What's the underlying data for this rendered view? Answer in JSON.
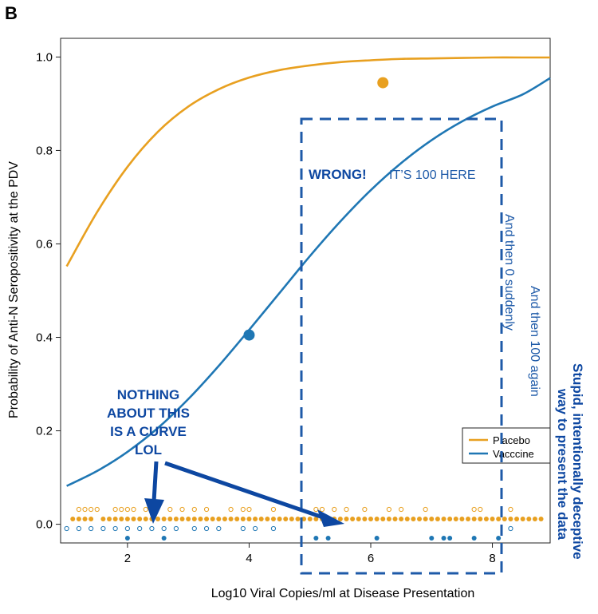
{
  "panel_letter": "B",
  "chart_data": {
    "type": "scatter",
    "xlabel": "Log10 Viral Copies/ml at Disease Presentation",
    "ylabel": "Probability of Anti-N Seropositivity at the PDV",
    "xlim": [
      0.9,
      8.95
    ],
    "ylim": [
      -0.04,
      1.04
    ],
    "x_ticks": [
      2,
      4,
      6,
      8
    ],
    "y_ticks": [
      0.0,
      0.2,
      0.4,
      0.6,
      0.8,
      1.0
    ],
    "y_tick_labels": [
      "0.0",
      "0.2",
      "0.4",
      "0.6",
      "0.8",
      "1.0"
    ],
    "grid": false,
    "legend_position": "right",
    "colors": {
      "placebo": "#e8a020",
      "vaccine": "#1f77b4",
      "annotation": "#0d47a1"
    },
    "series": [
      {
        "name": "Placebo",
        "kind": "fitted-curve",
        "x": [
          1.0,
          1.5,
          2.0,
          2.5,
          3.0,
          3.5,
          4.0,
          4.5,
          5.0,
          5.5,
          6.0,
          6.5,
          7.0,
          7.5,
          8.0,
          8.5,
          8.95
        ],
        "y": [
          0.552,
          0.668,
          0.765,
          0.84,
          0.894,
          0.931,
          0.956,
          0.972,
          0.982,
          0.989,
          0.993,
          0.996,
          0.997,
          0.998,
          0.999,
          0.999,
          0.999
        ]
      },
      {
        "name": "Vaccine",
        "kind": "fitted-curve",
        "x": [
          1.0,
          1.5,
          2.0,
          2.5,
          3.0,
          3.5,
          4.0,
          4.5,
          5.0,
          5.5,
          6.0,
          6.5,
          7.0,
          7.5,
          8.0,
          8.5,
          8.95
        ],
        "y": [
          0.082,
          0.114,
          0.155,
          0.206,
          0.268,
          0.339,
          0.416,
          0.495,
          0.574,
          0.648,
          0.715,
          0.773,
          0.822,
          0.862,
          0.894,
          0.92,
          0.955
        ]
      }
    ],
    "big_points": [
      {
        "series": "Placebo",
        "x": 6.2,
        "y": 0.945
      },
      {
        "series": "Vaccine",
        "x": 4.0,
        "y": 0.405
      }
    ],
    "rug": {
      "placebo_open": [
        1.2,
        1.3,
        1.4,
        1.5,
        1.8,
        1.9,
        2.0,
        2.1,
        2.3,
        2.7,
        2.9,
        3.1,
        3.3,
        3.7,
        3.9,
        4.0,
        4.4,
        5.1,
        5.2,
        5.4,
        5.6,
        5.9,
        6.3,
        6.5,
        6.9,
        7.7,
        7.8,
        8.3
      ],
      "placebo_filled": [
        1.1,
        1.2,
        1.3,
        1.4,
        1.6,
        1.7,
        1.8,
        1.9,
        2.0,
        2.1,
        2.2,
        2.3,
        2.4,
        2.5,
        2.6,
        2.7,
        2.8,
        2.9,
        3.0,
        3.1,
        3.2,
        3.3,
        3.4,
        3.5,
        3.6,
        3.7,
        3.8,
        3.9,
        4.0,
        4.1,
        4.2,
        4.3,
        4.4,
        4.5,
        4.6,
        4.7,
        4.8,
        4.9,
        5.0,
        5.1,
        5.2,
        5.3,
        5.4,
        5.5,
        5.6,
        5.7,
        5.8,
        5.9,
        6.0,
        6.1,
        6.2,
        6.3,
        6.4,
        6.5,
        6.6,
        6.7,
        6.8,
        6.9,
        7.0,
        7.1,
        7.2,
        7.3,
        7.4,
        7.5,
        7.6,
        7.7,
        7.8,
        7.9,
        8.0,
        8.1,
        8.2,
        8.3,
        8.4,
        8.5,
        8.6,
        8.7,
        8.8
      ],
      "vaccine_open": [
        1.0,
        1.2,
        1.4,
        1.6,
        1.8,
        2.0,
        2.2,
        2.4,
        2.6,
        2.8,
        3.1,
        3.3,
        3.5,
        3.9,
        4.1,
        4.4,
        8.3
      ],
      "vaccine_filled": [
        2.0,
        2.6,
        5.1,
        5.3,
        6.1,
        7.0,
        7.2,
        7.3,
        7.7,
        8.1
      ]
    }
  },
  "legend": {
    "placebo": "Placebo",
    "vaccine": "Vacccine"
  },
  "annotations": {
    "wrong": "WRONG!",
    "its_100_here": "IT’S 100 HERE",
    "then_0": "And then 0 suddenly",
    "then_100": "And then 100 again",
    "nothing_lines": [
      "NOTHING",
      "ABOUT THIS",
      "IS A CURVE",
      "LOL"
    ],
    "stupid_lines": [
      "Stupid, intentionally deceptive",
      "way to present the data"
    ]
  }
}
